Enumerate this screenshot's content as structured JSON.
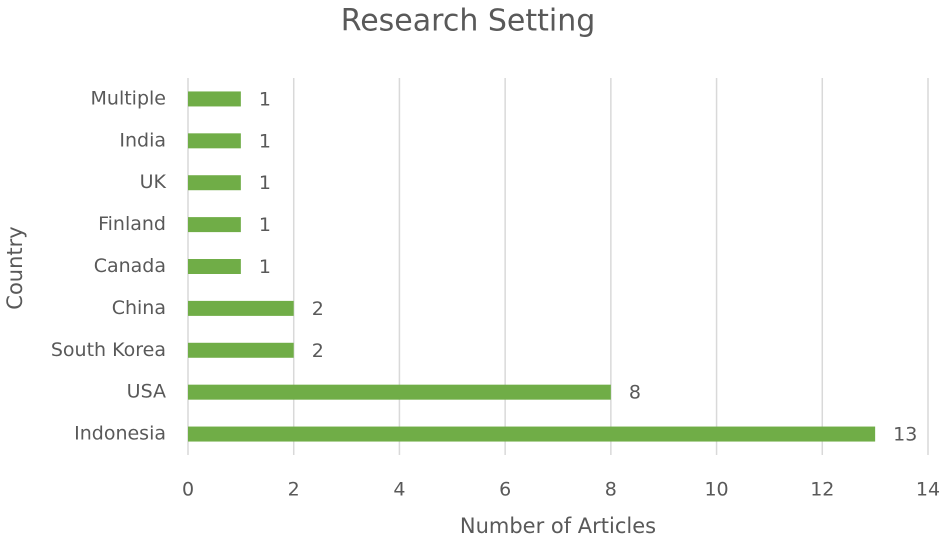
{
  "chart_data": {
    "type": "bar",
    "orientation": "horizontal",
    "title": "Research  Setting",
    "x_label": "Number of Articles",
    "y_label": "Country",
    "categories": [
      "Multiple",
      "India",
      "UK",
      "Finland",
      "Canada",
      "China",
      "South Korea",
      "USA",
      "Indonesia"
    ],
    "values": [
      1,
      1,
      1,
      1,
      1,
      2,
      2,
      8,
      13
    ],
    "color": "#70ad47",
    "xlim": [
      0,
      14
    ],
    "xticks": [
      0,
      2,
      4,
      6,
      8,
      10,
      12,
      14
    ],
    "grid": true
  }
}
